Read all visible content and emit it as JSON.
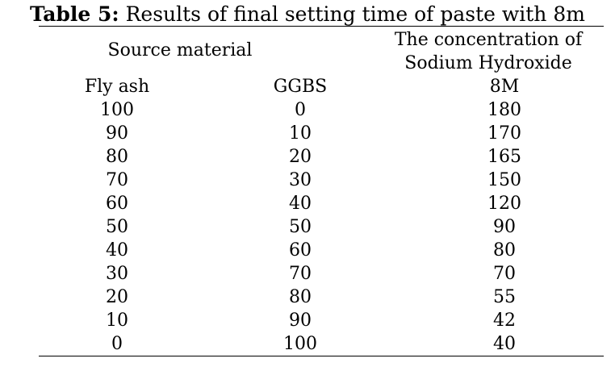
{
  "caption": {
    "label": "Table 5:",
    "text": " Results of final setting time of paste with 8m"
  },
  "headers": {
    "source_material": "Source material",
    "concentration_line1": "The concentration of",
    "concentration_line2": "Sodium Hydroxide",
    "fly_ash": "Fly ash",
    "ggbs": "GGBS",
    "molarity": "8M"
  },
  "rows": [
    [
      "100",
      "0",
      "180"
    ],
    [
      "90",
      "10",
      "170"
    ],
    [
      "80",
      "20",
      "165"
    ],
    [
      "70",
      "30",
      "150"
    ],
    [
      "60",
      "40",
      "120"
    ],
    [
      "50",
      "50",
      "90"
    ],
    [
      "40",
      "60",
      "80"
    ],
    [
      "30",
      "70",
      "70"
    ],
    [
      "20",
      "80",
      "55"
    ],
    [
      "10",
      "90",
      "42"
    ],
    [
      "0",
      "100",
      "40"
    ]
  ]
}
